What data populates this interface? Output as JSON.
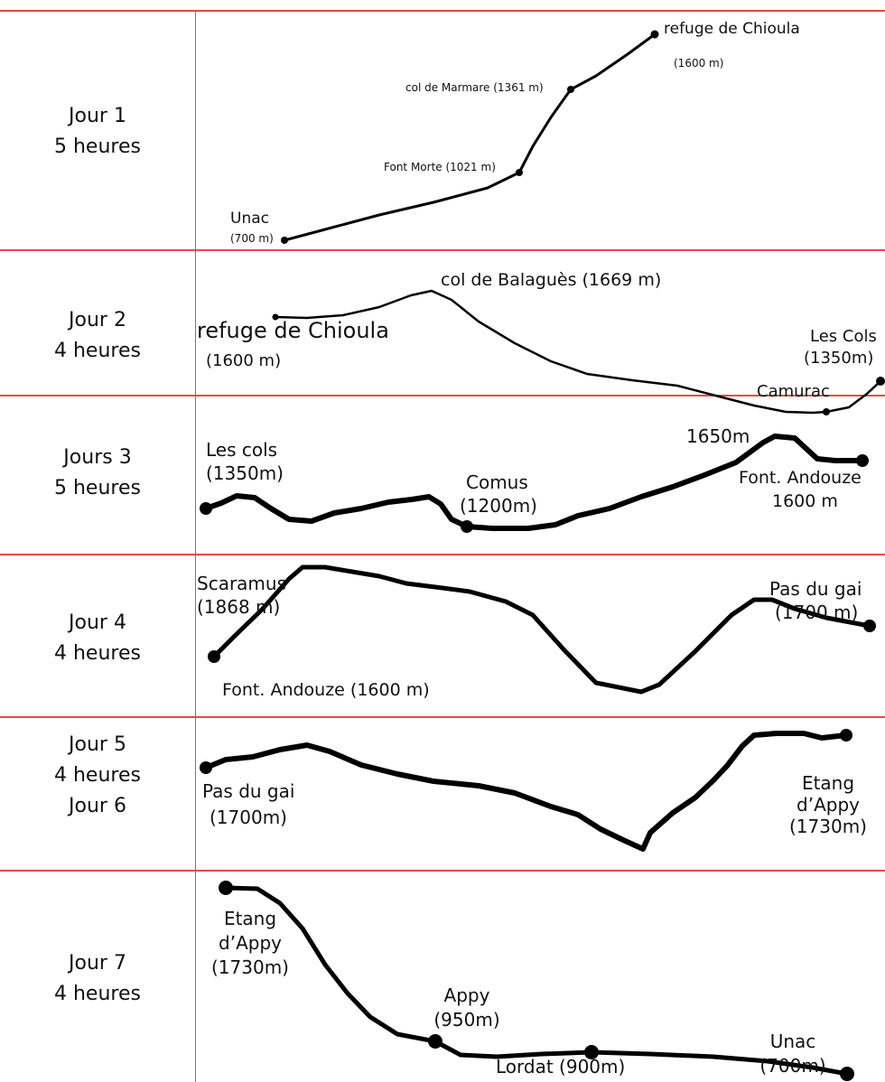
{
  "days": [
    {
      "day": "Jour 1",
      "duration": "5 heures"
    },
    {
      "day": "Jour 2",
      "duration": "4 heures"
    },
    {
      "day": "Jours 3",
      "duration": "5 heures"
    },
    {
      "day": "Jour 4",
      "duration": "4 heures"
    },
    {
      "day": "Jour 5",
      "duration": "4 heures",
      "day_b": "Jour 6"
    },
    {
      "day": "Jour 7",
      "duration": "4 heures"
    }
  ],
  "labels": {
    "d1": {
      "unac": "Unac",
      "unac_alt": "(700 m)",
      "font_morte": "Font Morte (1021 m)",
      "marmare": "col de Marmare (1361 m)",
      "chioula": "refuge de Chioula",
      "chioula_alt": "(1600 m)"
    },
    "d2": {
      "chioula": "refuge de Chioula",
      "chioula_alt": "(1600 m)",
      "balagues": "col de Balaguès (1669 m)",
      "camurac": "Camurac",
      "cols": "Les Cols",
      "cols_alt": "(1350m)"
    },
    "d3": {
      "cols": "Les cols",
      "cols_alt": "(1350m)",
      "comus": "Comus",
      "comus_alt": "(1200m)",
      "peak": "1650m",
      "andouze": "Font. Andouze",
      "andouze_alt": "1600 m"
    },
    "d4": {
      "scaramus": "Scaramus",
      "scaramus_alt": "(1868 m)",
      "andouze": "Font. Andouze (1600 m)",
      "gai": "Pas du gai",
      "gai_alt": "(1700 m)"
    },
    "d5": {
      "gai": "Pas du gai",
      "gai_alt": "(1700m)",
      "etang1": "Etang",
      "etang2": "d’Appy",
      "etang_alt": "(1730m)"
    },
    "d7": {
      "etang1": "Etang",
      "etang2": "d’Appy",
      "etang_alt": "(1730m)",
      "appy": "Appy",
      "appy_alt": "(950m)",
      "lordat": "Lordat (900m)",
      "unac": "Unac",
      "unac_alt": "(700m)"
    }
  },
  "colors": {
    "grid": "#e84a4a",
    "profile": "#000000",
    "divider": "#777777"
  }
}
